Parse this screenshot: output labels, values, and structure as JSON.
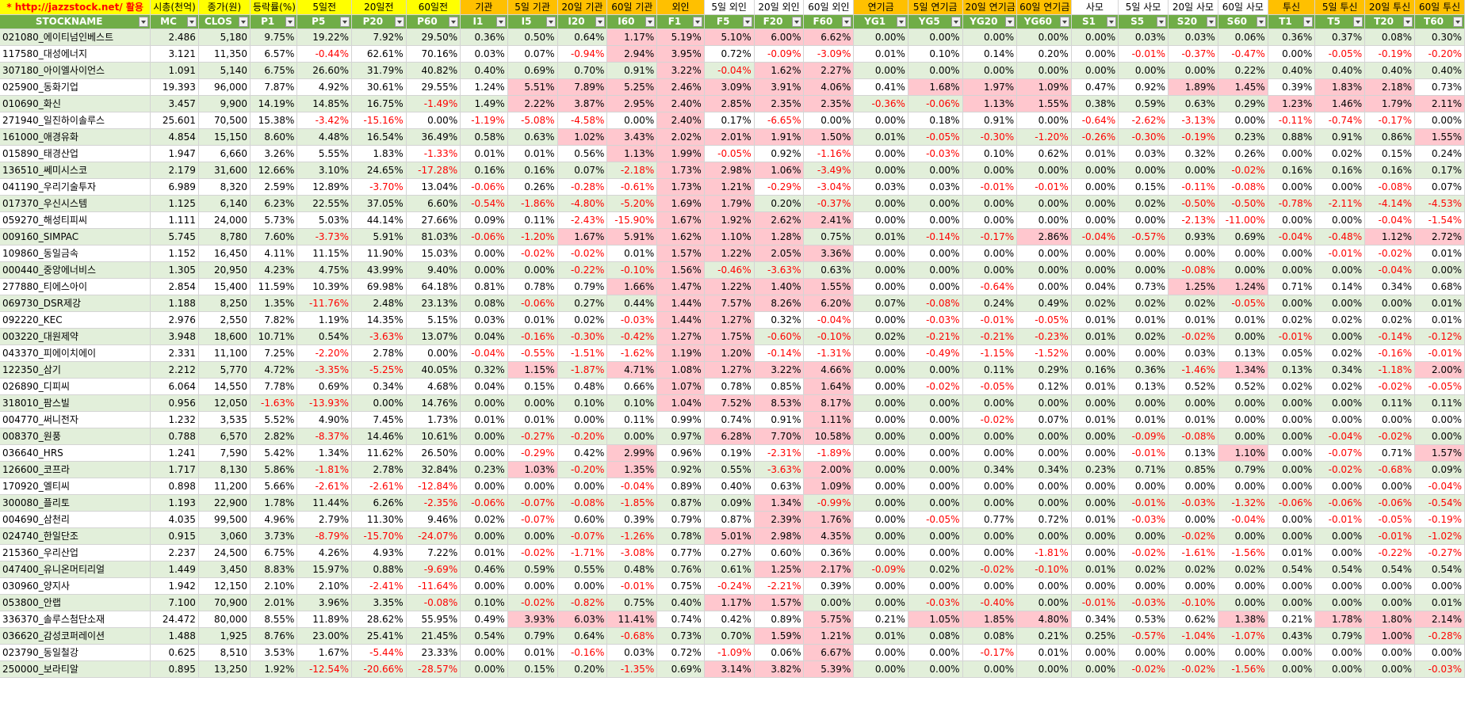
{
  "top_labels": [
    {
      "text": "* http://jazzstock.net/ 활용",
      "bg": "y",
      "red": true
    },
    {
      "text": "시총(천억)",
      "bg": "y"
    },
    {
      "text": "종가(원)",
      "bg": "y"
    },
    {
      "text": "등락률(%)",
      "bg": "y"
    },
    {
      "text": "5일전",
      "bg": "y"
    },
    {
      "text": "20일전",
      "bg": "y"
    },
    {
      "text": "60일전",
      "bg": "y"
    },
    {
      "text": "기관",
      "bg": "o"
    },
    {
      "text": "5일 기관",
      "bg": "o"
    },
    {
      "text": "20일 기관",
      "bg": "o"
    },
    {
      "text": "60일 기관",
      "bg": "o"
    },
    {
      "text": "외인",
      "bg": "o"
    },
    {
      "text": "5일 외인",
      "bg": "w"
    },
    {
      "text": "20일 외인",
      "bg": "w"
    },
    {
      "text": "60일 외인",
      "bg": "w"
    },
    {
      "text": "연기금",
      "bg": "o"
    },
    {
      "text": "5일 연기금",
      "bg": "o"
    },
    {
      "text": "20일 연기금",
      "bg": "o"
    },
    {
      "text": "60일 연기금",
      "bg": "o"
    },
    {
      "text": "사모",
      "bg": "w"
    },
    {
      "text": "5일 사모",
      "bg": "w"
    },
    {
      "text": "20일 사모",
      "bg": "w"
    },
    {
      "text": "60일 사모",
      "bg": "w"
    },
    {
      "text": "투신",
      "bg": "o"
    },
    {
      "text": "5일 투신",
      "bg": "o"
    },
    {
      "text": "20일 투신",
      "bg": "o"
    },
    {
      "text": "60일 투신",
      "bg": "o"
    }
  ],
  "headers": [
    "STOCKNAME",
    "MC",
    "CLOS",
    "P1",
    "P5",
    "P20",
    "P60",
    "I1",
    "I5",
    "I20",
    "I60",
    "F1",
    "F5",
    "F20",
    "F60",
    "YG1",
    "YG5",
    "YG20",
    "YG60",
    "S1",
    "S5",
    "S20",
    "S60",
    "T1",
    "T5",
    "T20",
    "T60"
  ],
  "sort_indicator": "F1",
  "rows": [
    [
      "021080_에이티넘인베스트",
      "2.486",
      "5,180",
      "9.75%",
      "19.22%",
      "7.92%",
      "29.50%",
      "0.36%",
      "0.50%",
      "0.64%",
      "1.17%",
      "5.19%",
      "5.10%",
      "6.00%",
      "6.62%",
      "0.00%",
      "0.00%",
      "0.00%",
      "0.00%",
      "0.00%",
      "0.03%",
      "0.03%",
      "0.06%",
      "0.36%",
      "0.37%",
      "0.08%",
      "0.30%"
    ],
    [
      "117580_대성에너지",
      "3.121",
      "11,350",
      "6.57%",
      "-0.44%",
      "62.61%",
      "70.16%",
      "0.03%",
      "0.07%",
      "-0.94%",
      "2.94%",
      "3.95%",
      "0.72%",
      "-0.09%",
      "-3.09%",
      "0.01%",
      "0.10%",
      "0.14%",
      "0.20%",
      "0.00%",
      "-0.01%",
      "-0.37%",
      "-0.47%",
      "0.00%",
      "-0.05%",
      "-0.19%",
      "-0.20%"
    ],
    [
      "307180_아이엘사이언스",
      "1.091",
      "5,140",
      "6.75%",
      "26.60%",
      "31.79%",
      "40.82%",
      "0.40%",
      "0.69%",
      "0.70%",
      "0.91%",
      "3.22%",
      "-0.04%",
      "1.62%",
      "2.27%",
      "0.00%",
      "0.00%",
      "0.00%",
      "0.00%",
      "0.00%",
      "0.00%",
      "0.00%",
      "0.22%",
      "0.40%",
      "0.40%",
      "0.40%",
      "0.40%"
    ],
    [
      "025900_동화기업",
      "19.393",
      "96,000",
      "7.87%",
      "4.92%",
      "30.61%",
      "29.55%",
      "1.24%",
      "5.51%",
      "7.89%",
      "5.25%",
      "2.46%",
      "3.09%",
      "3.91%",
      "4.06%",
      "0.41%",
      "1.68%",
      "1.97%",
      "1.09%",
      "0.47%",
      "0.92%",
      "1.89%",
      "1.45%",
      "0.39%",
      "1.83%",
      "2.18%",
      "0.73%"
    ],
    [
      "010690_화신",
      "3.457",
      "9,900",
      "14.19%",
      "14.85%",
      "16.75%",
      "-1.49%",
      "1.49%",
      "2.22%",
      "3.87%",
      "2.95%",
      "2.40%",
      "2.85%",
      "2.35%",
      "2.35%",
      "-0.36%",
      "-0.06%",
      "1.13%",
      "1.55%",
      "0.38%",
      "0.59%",
      "0.63%",
      "0.29%",
      "1.23%",
      "1.46%",
      "1.79%",
      "2.11%"
    ],
    [
      "271940_일진하이솔루스",
      "25.601",
      "70,500",
      "15.38%",
      "-3.42%",
      "-15.16%",
      "0.00%",
      "-1.19%",
      "-5.08%",
      "-4.58%",
      "0.00%",
      "2.40%",
      "0.17%",
      "-6.65%",
      "0.00%",
      "0.00%",
      "0.18%",
      "0.91%",
      "0.00%",
      "-0.64%",
      "-2.62%",
      "-3.13%",
      "0.00%",
      "-0.11%",
      "-0.74%",
      "-0.17%",
      "0.00%"
    ],
    [
      "161000_애경유화",
      "4.854",
      "15,150",
      "8.60%",
      "4.48%",
      "16.54%",
      "36.49%",
      "0.58%",
      "0.63%",
      "1.02%",
      "3.43%",
      "2.02%",
      "2.01%",
      "1.91%",
      "1.50%",
      "0.01%",
      "-0.05%",
      "-0.30%",
      "-1.20%",
      "-0.26%",
      "-0.30%",
      "-0.19%",
      "0.23%",
      "0.88%",
      "0.91%",
      "0.86%",
      "1.55%"
    ],
    [
      "015890_태경산업",
      "1.947",
      "6,660",
      "3.26%",
      "5.55%",
      "1.83%",
      "-1.33%",
      "0.01%",
      "0.01%",
      "0.56%",
      "1.13%",
      "1.99%",
      "-0.05%",
      "0.92%",
      "-1.16%",
      "0.00%",
      "-0.03%",
      "0.10%",
      "0.62%",
      "0.01%",
      "0.03%",
      "0.32%",
      "0.26%",
      "0.00%",
      "0.02%",
      "0.15%",
      "0.24%"
    ],
    [
      "136510_쎄미시스코",
      "2.179",
      "31,600",
      "12.66%",
      "3.10%",
      "24.65%",
      "-17.28%",
      "0.16%",
      "0.16%",
      "0.07%",
      "-2.18%",
      "1.73%",
      "2.98%",
      "1.06%",
      "-3.49%",
      "0.00%",
      "0.00%",
      "0.00%",
      "0.00%",
      "0.00%",
      "0.00%",
      "0.00%",
      "-0.02%",
      "0.16%",
      "0.16%",
      "0.16%",
      "0.17%"
    ],
    [
      "041190_우리기술투자",
      "6.989",
      "8,320",
      "2.59%",
      "12.89%",
      "-3.70%",
      "13.04%",
      "-0.06%",
      "0.26%",
      "-0.28%",
      "-0.61%",
      "1.73%",
      "1.21%",
      "-0.29%",
      "-3.04%",
      "0.03%",
      "0.03%",
      "-0.01%",
      "-0.01%",
      "0.00%",
      "0.15%",
      "-0.11%",
      "-0.08%",
      "0.00%",
      "0.00%",
      "-0.08%",
      "0.07%"
    ],
    [
      "017370_우신시스템",
      "1.125",
      "6,140",
      "6.23%",
      "22.55%",
      "37.05%",
      "6.60%",
      "-0.54%",
      "-1.86%",
      "-4.80%",
      "-5.20%",
      "1.69%",
      "1.79%",
      "0.20%",
      "-0.37%",
      "0.00%",
      "0.00%",
      "0.00%",
      "0.00%",
      "0.00%",
      "0.02%",
      "-0.50%",
      "-0.50%",
      "-0.78%",
      "-2.11%",
      "-4.14%",
      "-4.53%"
    ],
    [
      "059270_해성티피씨",
      "1.111",
      "24,000",
      "5.73%",
      "5.03%",
      "44.14%",
      "27.66%",
      "0.09%",
      "0.11%",
      "-2.43%",
      "-15.90%",
      "1.67%",
      "1.92%",
      "2.62%",
      "2.41%",
      "0.00%",
      "0.00%",
      "0.00%",
      "0.00%",
      "0.00%",
      "0.00%",
      "-2.13%",
      "-11.00%",
      "0.00%",
      "0.00%",
      "-0.04%",
      "-1.54%"
    ],
    [
      "009160_SIMPAC",
      "5.745",
      "8,780",
      "7.60%",
      "-3.73%",
      "5.91%",
      "81.03%",
      "-0.06%",
      "-1.20%",
      "1.67%",
      "5.91%",
      "1.62%",
      "1.10%",
      "1.28%",
      "0.75%",
      "0.01%",
      "-0.14%",
      "-0.17%",
      "2.86%",
      "-0.04%",
      "-0.57%",
      "0.93%",
      "0.69%",
      "-0.04%",
      "-0.48%",
      "1.12%",
      "2.72%"
    ],
    [
      "109860_동일금속",
      "1.152",
      "16,450",
      "4.11%",
      "11.15%",
      "11.90%",
      "15.03%",
      "0.00%",
      "-0.02%",
      "-0.02%",
      "0.01%",
      "1.57%",
      "1.22%",
      "2.05%",
      "3.36%",
      "0.00%",
      "0.00%",
      "0.00%",
      "0.00%",
      "0.00%",
      "0.00%",
      "0.00%",
      "0.00%",
      "0.00%",
      "-0.01%",
      "-0.02%",
      "0.01%"
    ],
    [
      "000440_중앙에너비스",
      "1.305",
      "20,950",
      "4.23%",
      "4.75%",
      "43.99%",
      "9.40%",
      "0.00%",
      "0.00%",
      "-0.22%",
      "-0.10%",
      "1.56%",
      "-0.46%",
      "-3.63%",
      "0.63%",
      "0.00%",
      "0.00%",
      "0.00%",
      "0.00%",
      "0.00%",
      "0.00%",
      "-0.08%",
      "0.00%",
      "0.00%",
      "0.00%",
      "-0.04%",
      "0.00%"
    ],
    [
      "277880_티에스아이",
      "2.854",
      "15,400",
      "11.59%",
      "10.39%",
      "69.98%",
      "64.18%",
      "0.81%",
      "0.78%",
      "0.79%",
      "1.66%",
      "1.47%",
      "1.22%",
      "1.40%",
      "1.55%",
      "0.00%",
      "0.00%",
      "-0.64%",
      "0.00%",
      "0.04%",
      "0.73%",
      "1.25%",
      "1.24%",
      "0.71%",
      "0.14%",
      "0.34%",
      "0.68%"
    ],
    [
      "069730_DSR제강",
      "1.188",
      "8,250",
      "1.35%",
      "-11.76%",
      "2.48%",
      "23.13%",
      "0.08%",
      "-0.06%",
      "0.27%",
      "0.44%",
      "1.44%",
      "7.57%",
      "8.26%",
      "6.20%",
      "0.07%",
      "-0.08%",
      "0.24%",
      "0.49%",
      "0.02%",
      "0.02%",
      "0.02%",
      "-0.05%",
      "0.00%",
      "0.00%",
      "0.00%",
      "0.01%"
    ],
    [
      "092220_KEC",
      "2.976",
      "2,550",
      "7.82%",
      "1.19%",
      "14.35%",
      "5.15%",
      "0.03%",
      "0.01%",
      "0.02%",
      "-0.03%",
      "1.44%",
      "1.27%",
      "0.32%",
      "-0.04%",
      "0.00%",
      "-0.03%",
      "-0.01%",
      "-0.05%",
      "0.01%",
      "0.01%",
      "0.01%",
      "0.01%",
      "0.02%",
      "0.02%",
      "0.02%",
      "0.01%"
    ],
    [
      "003220_대원제약",
      "3.948",
      "18,600",
      "10.71%",
      "0.54%",
      "-3.63%",
      "13.07%",
      "0.04%",
      "-0.16%",
      "-0.30%",
      "-0.42%",
      "1.27%",
      "1.75%",
      "-0.60%",
      "-0.10%",
      "0.02%",
      "-0.21%",
      "-0.21%",
      "-0.23%",
      "0.01%",
      "0.02%",
      "-0.02%",
      "0.00%",
      "-0.01%",
      "0.00%",
      "-0.14%",
      "-0.12%"
    ],
    [
      "043370_피에이치에이",
      "2.331",
      "11,100",
      "7.25%",
      "-2.20%",
      "2.78%",
      "0.00%",
      "-0.04%",
      "-0.55%",
      "-1.51%",
      "-1.62%",
      "1.19%",
      "1.20%",
      "-0.14%",
      "-1.31%",
      "0.00%",
      "-0.49%",
      "-1.15%",
      "-1.52%",
      "0.00%",
      "0.00%",
      "0.03%",
      "0.13%",
      "0.05%",
      "0.02%",
      "-0.16%",
      "-0.01%"
    ],
    [
      "122350_삼기",
      "2.212",
      "5,770",
      "4.72%",
      "-3.35%",
      "-5.25%",
      "40.05%",
      "0.32%",
      "1.15%",
      "-1.87%",
      "4.71%",
      "1.08%",
      "1.27%",
      "3.22%",
      "4.66%",
      "0.00%",
      "0.00%",
      "0.11%",
      "0.29%",
      "0.16%",
      "0.36%",
      "-1.46%",
      "1.34%",
      "0.13%",
      "0.34%",
      "-1.18%",
      "2.00%"
    ],
    [
      "026890_디피씨",
      "6.064",
      "14,550",
      "7.78%",
      "0.69%",
      "0.34%",
      "4.68%",
      "0.04%",
      "0.15%",
      "0.48%",
      "0.66%",
      "1.07%",
      "0.78%",
      "0.85%",
      "1.64%",
      "0.00%",
      "-0.02%",
      "-0.05%",
      "0.12%",
      "0.01%",
      "0.13%",
      "0.52%",
      "0.52%",
      "0.02%",
      "0.02%",
      "-0.02%",
      "-0.05%"
    ],
    [
      "318010_팜스빌",
      "0.956",
      "12,050",
      "-1.63%",
      "-13.93%",
      "0.00%",
      "14.76%",
      "0.00%",
      "0.00%",
      "0.10%",
      "0.10%",
      "1.04%",
      "7.52%",
      "8.53%",
      "8.17%",
      "0.00%",
      "0.00%",
      "0.00%",
      "0.00%",
      "0.00%",
      "0.00%",
      "0.00%",
      "0.00%",
      "0.00%",
      "0.00%",
      "0.11%",
      "0.11%"
    ],
    [
      "004770_써니전자",
      "1.232",
      "3,535",
      "5.52%",
      "4.90%",
      "7.45%",
      "1.73%",
      "0.01%",
      "0.01%",
      "0.00%",
      "0.11%",
      "0.99%",
      "0.74%",
      "0.91%",
      "1.11%",
      "0.00%",
      "0.00%",
      "-0.02%",
      "0.07%",
      "0.01%",
      "0.01%",
      "0.01%",
      "0.00%",
      "0.00%",
      "0.00%",
      "0.00%",
      "0.00%"
    ],
    [
      "008370_원풍",
      "0.788",
      "6,570",
      "2.82%",
      "-8.37%",
      "14.46%",
      "10.61%",
      "0.00%",
      "-0.27%",
      "-0.20%",
      "0.00%",
      "0.97%",
      "6.28%",
      "7.70%",
      "10.58%",
      "0.00%",
      "0.00%",
      "0.00%",
      "0.00%",
      "0.00%",
      "-0.09%",
      "-0.08%",
      "0.00%",
      "0.00%",
      "-0.04%",
      "-0.02%",
      "0.00%"
    ],
    [
      "036640_HRS",
      "1.241",
      "7,590",
      "5.42%",
      "1.34%",
      "11.62%",
      "26.50%",
      "0.00%",
      "-0.29%",
      "0.42%",
      "2.99%",
      "0.96%",
      "0.19%",
      "-2.31%",
      "-1.89%",
      "0.00%",
      "0.00%",
      "0.00%",
      "0.00%",
      "0.00%",
      "-0.01%",
      "0.13%",
      "1.10%",
      "0.00%",
      "-0.07%",
      "0.71%",
      "1.57%"
    ],
    [
      "126600_코프라",
      "1.717",
      "8,130",
      "5.86%",
      "-1.81%",
      "2.78%",
      "32.84%",
      "0.23%",
      "1.03%",
      "-0.20%",
      "1.35%",
      "0.92%",
      "0.55%",
      "-3.63%",
      "2.00%",
      "0.00%",
      "0.00%",
      "0.34%",
      "0.34%",
      "0.23%",
      "0.71%",
      "0.85%",
      "0.79%",
      "0.00%",
      "-0.02%",
      "-0.68%",
      "0.09%"
    ],
    [
      "170920_엘티씨",
      "0.898",
      "11,200",
      "5.66%",
      "-2.61%",
      "-2.61%",
      "-12.84%",
      "0.00%",
      "0.00%",
      "0.00%",
      "-0.04%",
      "0.89%",
      "0.40%",
      "0.63%",
      "1.09%",
      "0.00%",
      "0.00%",
      "0.00%",
      "0.00%",
      "0.00%",
      "0.00%",
      "0.00%",
      "0.00%",
      "0.00%",
      "0.00%",
      "0.00%",
      "-0.04%"
    ],
    [
      "300080_플리토",
      "1.193",
      "22,900",
      "1.78%",
      "11.44%",
      "6.26%",
      "-2.35%",
      "-0.06%",
      "-0.07%",
      "-0.08%",
      "-1.85%",
      "0.87%",
      "0.09%",
      "1.34%",
      "-0.99%",
      "0.00%",
      "0.00%",
      "0.00%",
      "0.00%",
      "0.00%",
      "-0.01%",
      "-0.03%",
      "-1.32%",
      "-0.06%",
      "-0.06%",
      "-0.06%",
      "-0.54%"
    ],
    [
      "004690_삼천리",
      "4.035",
      "99,500",
      "4.96%",
      "2.79%",
      "11.30%",
      "9.46%",
      "0.02%",
      "-0.07%",
      "0.60%",
      "0.39%",
      "0.79%",
      "0.87%",
      "2.39%",
      "1.76%",
      "0.00%",
      "-0.05%",
      "0.77%",
      "0.72%",
      "0.01%",
      "-0.03%",
      "0.00%",
      "-0.04%",
      "0.00%",
      "-0.01%",
      "-0.05%",
      "-0.19%"
    ],
    [
      "024740_한일단조",
      "0.915",
      "3,060",
      "3.73%",
      "-8.79%",
      "-15.70%",
      "-24.07%",
      "0.00%",
      "0.00%",
      "-0.07%",
      "-1.26%",
      "0.78%",
      "5.01%",
      "2.98%",
      "4.35%",
      "0.00%",
      "0.00%",
      "0.00%",
      "0.00%",
      "0.00%",
      "0.00%",
      "-0.02%",
      "0.00%",
      "0.00%",
      "0.00%",
      "-0.01%",
      "-1.02%"
    ],
    [
      "215360_우리산업",
      "2.237",
      "24,500",
      "6.75%",
      "4.26%",
      "4.93%",
      "7.22%",
      "0.01%",
      "-0.02%",
      "-1.71%",
      "-3.08%",
      "0.77%",
      "0.27%",
      "0.60%",
      "0.36%",
      "0.00%",
      "0.00%",
      "0.00%",
      "-1.81%",
      "0.00%",
      "-0.02%",
      "-1.61%",
      "-1.56%",
      "0.01%",
      "0.00%",
      "-0.22%",
      "-0.27%"
    ],
    [
      "047400_유니온머티리얼",
      "1.449",
      "3,450",
      "8.83%",
      "15.97%",
      "0.88%",
      "-9.69%",
      "0.46%",
      "0.59%",
      "0.55%",
      "0.48%",
      "0.76%",
      "0.61%",
      "1.25%",
      "2.17%",
      "-0.09%",
      "0.02%",
      "-0.02%",
      "-0.10%",
      "0.01%",
      "0.02%",
      "0.02%",
      "0.02%",
      "0.54%",
      "0.54%",
      "0.54%",
      "0.54%"
    ],
    [
      "030960_양지사",
      "1.942",
      "12,150",
      "2.10%",
      "2.10%",
      "-2.41%",
      "-11.64%",
      "0.00%",
      "0.00%",
      "0.00%",
      "-0.01%",
      "0.75%",
      "-0.24%",
      "-2.21%",
      "0.39%",
      "0.00%",
      "0.00%",
      "0.00%",
      "0.00%",
      "0.00%",
      "0.00%",
      "0.00%",
      "0.00%",
      "0.00%",
      "0.00%",
      "0.00%",
      "0.00%"
    ],
    [
      "053800_안랩",
      "7.100",
      "70,900",
      "2.01%",
      "3.96%",
      "3.35%",
      "-0.08%",
      "0.10%",
      "-0.02%",
      "-0.82%",
      "0.75%",
      "0.40%",
      "1.17%",
      "1.57%",
      "0.00%",
      "0.00%",
      "-0.03%",
      "-0.40%",
      "0.00%",
      "-0.01%",
      "-0.03%",
      "-0.10%",
      "0.00%",
      "0.00%",
      "0.00%",
      "0.00%",
      "0.01%"
    ],
    [
      "336370_솔루스첨단소재",
      "24.472",
      "80,000",
      "8.55%",
      "11.89%",
      "28.62%",
      "55.95%",
      "0.49%",
      "3.93%",
      "6.03%",
      "11.41%",
      "0.74%",
      "0.42%",
      "0.89%",
      "5.75%",
      "0.21%",
      "1.05%",
      "1.85%",
      "4.80%",
      "0.34%",
      "0.53%",
      "0.62%",
      "1.38%",
      "0.21%",
      "1.78%",
      "1.80%",
      "2.14%"
    ],
    [
      "036620_감성코퍼레이션",
      "1.488",
      "1,925",
      "8.76%",
      "23.00%",
      "25.41%",
      "21.45%",
      "0.54%",
      "0.79%",
      "0.64%",
      "-0.68%",
      "0.73%",
      "0.70%",
      "1.59%",
      "1.21%",
      "0.01%",
      "0.08%",
      "0.08%",
      "0.21%",
      "0.25%",
      "-0.57%",
      "-1.04%",
      "-1.07%",
      "0.43%",
      "0.79%",
      "1.00%",
      "-0.28%"
    ],
    [
      "023790_동일철강",
      "0.625",
      "8,510",
      "3.53%",
      "1.67%",
      "-5.44%",
      "23.33%",
      "0.00%",
      "0.01%",
      "-0.16%",
      "0.03%",
      "0.72%",
      "-1.09%",
      "0.06%",
      "6.67%",
      "0.00%",
      "0.00%",
      "-0.17%",
      "0.01%",
      "0.00%",
      "0.00%",
      "0.00%",
      "0.00%",
      "0.00%",
      "0.00%",
      "0.00%",
      "0.00%"
    ],
    [
      "250000_보라티알",
      "0.895",
      "13,250",
      "1.92%",
      "-12.54%",
      "-20.66%",
      "-28.57%",
      "0.00%",
      "0.15%",
      "0.20%",
      "-1.35%",
      "0.69%",
      "3.14%",
      "3.82%",
      "5.39%",
      "0.00%",
      "0.00%",
      "0.00%",
      "0.00%",
      "0.00%",
      "-0.02%",
      "-0.02%",
      "-1.56%",
      "0.00%",
      "0.00%",
      "0.00%",
      "-0.03%"
    ]
  ],
  "highlight_rule": "flow columns I5-T60 with value >= 1.0% shown in light red fill",
  "colors": {
    "header_green": "#70ad47",
    "row_green": "#e2efda",
    "highlight_pink": "#ffc7ce",
    "yellow": "#ffff00",
    "orange": "#ffc000",
    "negative_red": "#ff0000"
  }
}
